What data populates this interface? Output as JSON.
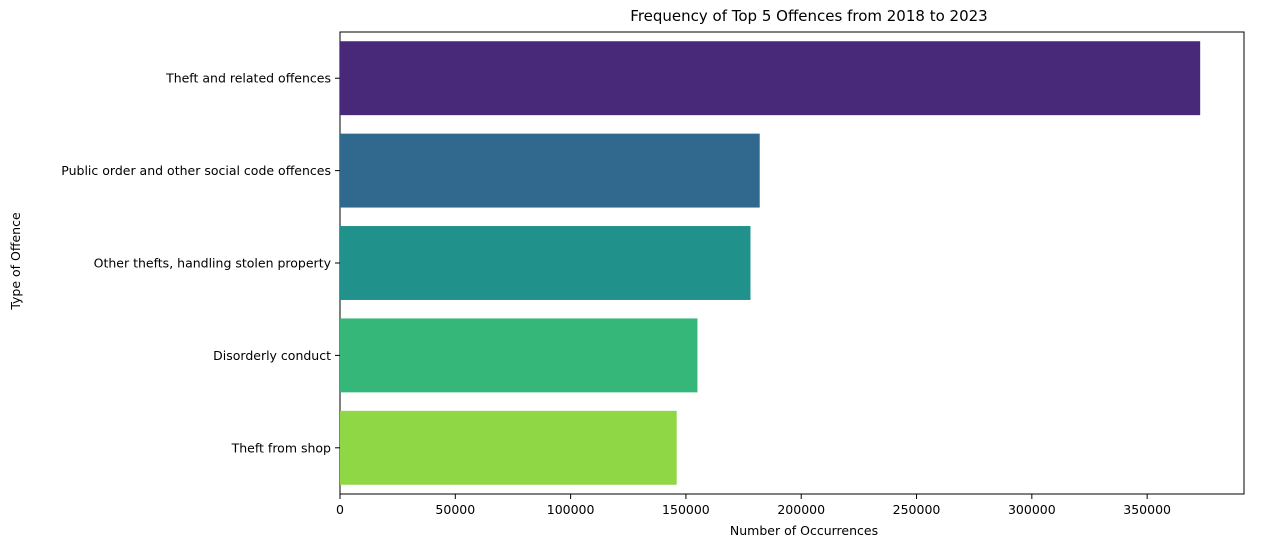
{
  "chart_data": {
    "type": "bar",
    "orientation": "horizontal",
    "title": "Frequency of Top 5 Offences from 2018 to 2023",
    "xlabel": "Number of Occurrences",
    "ylabel": "Type of Offence",
    "categories": [
      "Theft and related offences",
      "Public order and other social code offences",
      "Other thefts, handling stolen property",
      "Disorderly conduct",
      "Theft from shop"
    ],
    "values": [
      373000,
      182000,
      178000,
      155000,
      146000
    ],
    "colors": [
      "#482878",
      "#31688e",
      "#21918c",
      "#35b779",
      "#8fd744"
    ],
    "xlim": [
      0,
      392000
    ],
    "xticks": [
      0,
      50000,
      100000,
      150000,
      200000,
      250000,
      300000,
      350000
    ],
    "xtick_labels": [
      "0",
      "50000",
      "100000",
      "150000",
      "200000",
      "250000",
      "300000",
      "350000"
    ],
    "grid": false,
    "legend": "none"
  }
}
